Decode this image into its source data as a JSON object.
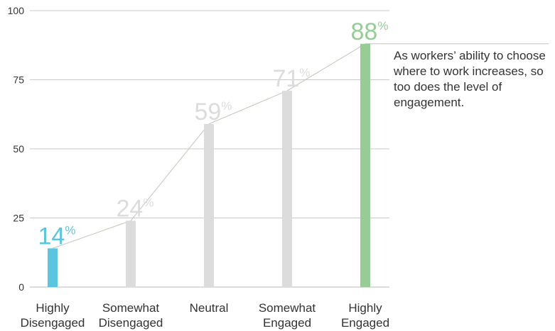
{
  "chart_data": {
    "type": "bar",
    "categories": [
      [
        "Highly",
        "Disengaged"
      ],
      [
        "Somewhat",
        "Disengaged"
      ],
      [
        "Neutral"
      ],
      [
        "Somewhat",
        "Engaged"
      ],
      [
        "Highly",
        "Engaged"
      ]
    ],
    "values": [
      14,
      24,
      59,
      71,
      88
    ],
    "value_labels": [
      "14",
      "24",
      "59",
      "71",
      "88"
    ],
    "value_suffix": "%",
    "bar_colors": [
      "#5bc4de",
      "#dcdcdc",
      "#dcdcdc",
      "#dcdcdc",
      "#97cc96"
    ],
    "label_colors": [
      "#5bc4de",
      "#dcdcdc",
      "#dcdcdc",
      "#dcdcdc",
      "#97cc96"
    ],
    "yticks": [
      "0",
      "25",
      "50",
      "75",
      "100"
    ],
    "ylim": [
      0,
      100
    ],
    "grid": true,
    "connector_line": true,
    "annotation": "As workers’ ability to choose where to work increases, so too does the level of engagement."
  }
}
